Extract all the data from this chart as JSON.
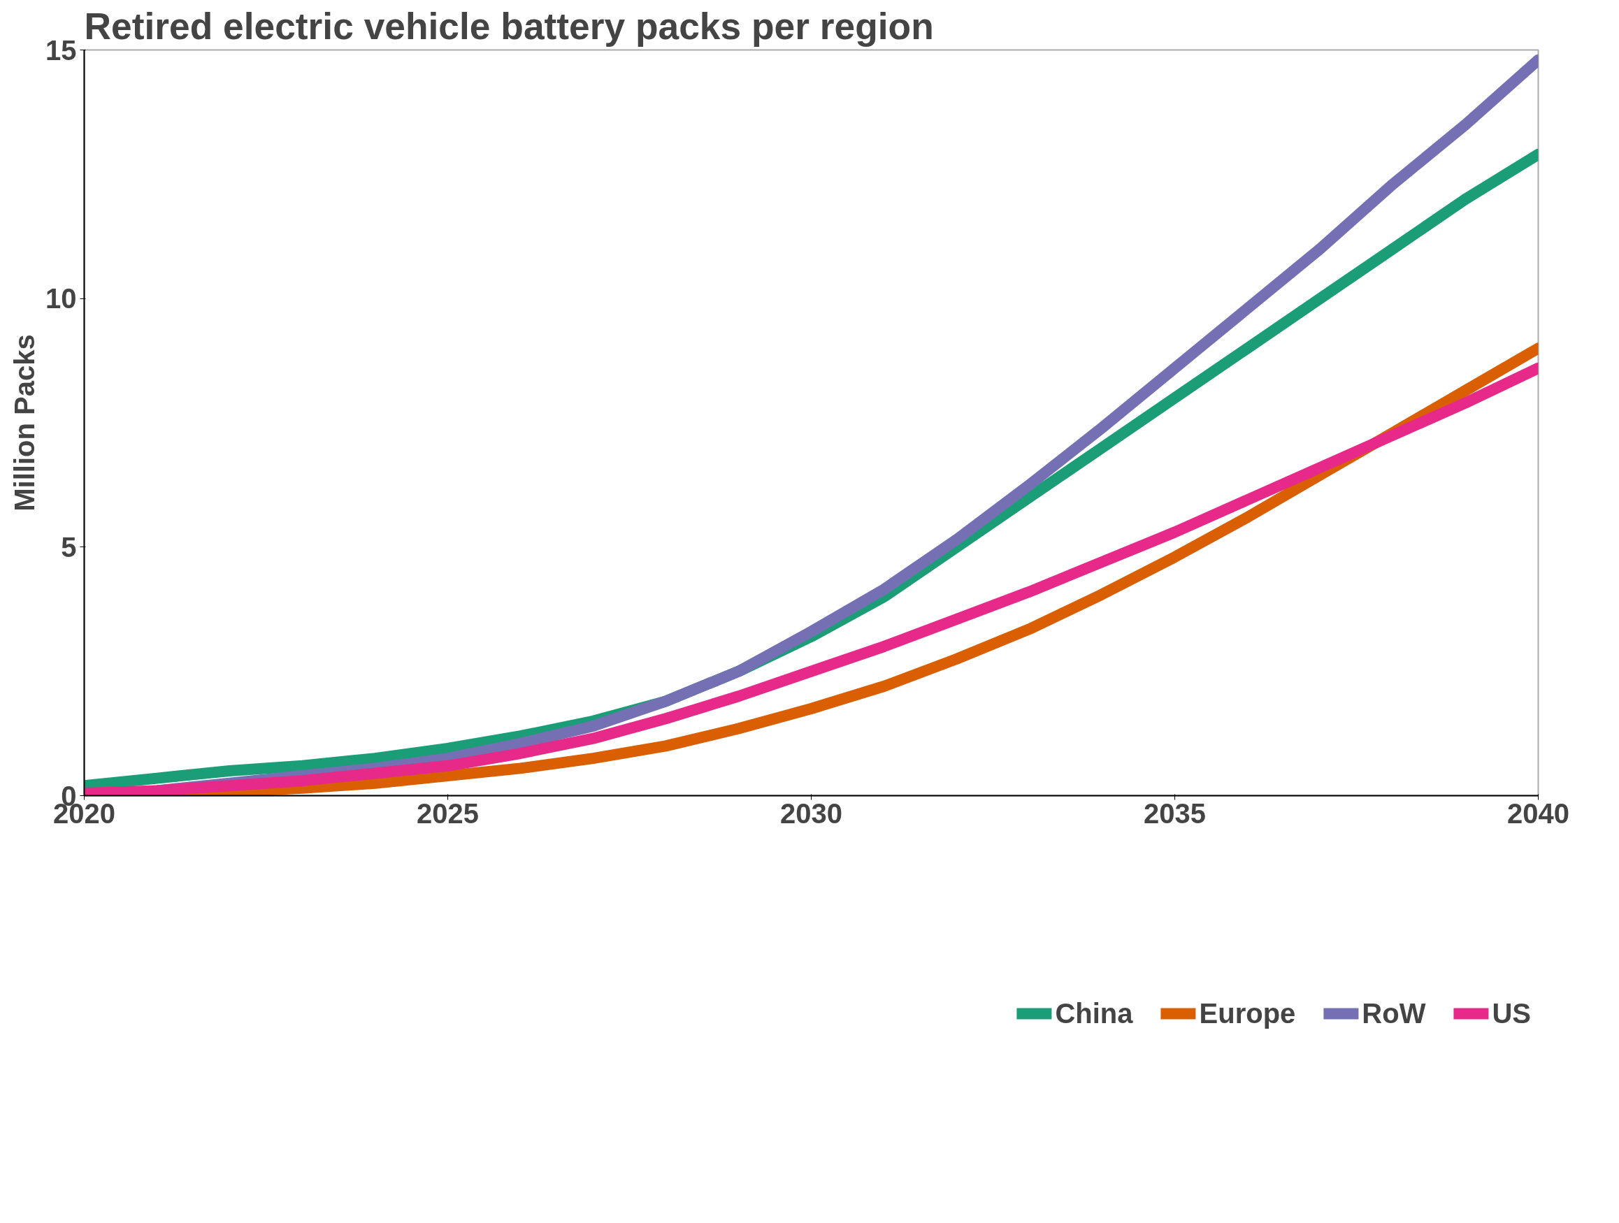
{
  "chart_data": {
    "type": "line",
    "title": "Retired electric vehicle battery packs per region",
    "ylabel": "Million Packs",
    "x": [
      2020,
      2021,
      2022,
      2023,
      2024,
      2025,
      2026,
      2027,
      2028,
      2029,
      2030,
      2031,
      2032,
      2033,
      2034,
      2035,
      2036,
      2037,
      2038,
      2039,
      2040
    ],
    "series": [
      {
        "name": "China",
        "color": "#1b9e77",
        "values": [
          0.2,
          0.35,
          0.5,
          0.6,
          0.75,
          0.95,
          1.2,
          1.5,
          1.9,
          2.5,
          3.2,
          4.0,
          5.0,
          6.0,
          7.0,
          8.0,
          9.0,
          10.0,
          11.0,
          12.0,
          12.9
        ]
      },
      {
        "name": "Europe",
        "color": "#d95f02",
        "values": [
          0.0,
          0.02,
          0.08,
          0.15,
          0.25,
          0.4,
          0.55,
          0.75,
          1.0,
          1.35,
          1.75,
          2.2,
          2.75,
          3.35,
          4.05,
          4.8,
          5.6,
          6.45,
          7.3,
          8.15,
          9.0
        ]
      },
      {
        "name": "RoW",
        "color": "#7570b3",
        "values": [
          0.0,
          0.1,
          0.25,
          0.4,
          0.55,
          0.75,
          1.05,
          1.4,
          1.9,
          2.5,
          3.3,
          4.15,
          5.15,
          6.25,
          7.4,
          8.6,
          9.8,
          11.0,
          12.3,
          13.5,
          14.8
        ]
      },
      {
        "name": "US",
        "color": "#e7298a",
        "values": [
          0.05,
          0.1,
          0.2,
          0.3,
          0.45,
          0.6,
          0.85,
          1.15,
          1.55,
          2.0,
          2.5,
          3.0,
          3.55,
          4.1,
          4.7,
          5.3,
          5.95,
          6.6,
          7.25,
          7.9,
          8.6
        ]
      }
    ],
    "xlim": [
      2020,
      2040
    ],
    "ylim": [
      0,
      15
    ],
    "xticks": [
      2020,
      2025,
      2030,
      2035,
      2040
    ],
    "yticks": [
      0,
      5,
      10,
      15
    ],
    "grid": false,
    "legend": "bottom",
    "marker": "none",
    "line_style": "solid"
  }
}
